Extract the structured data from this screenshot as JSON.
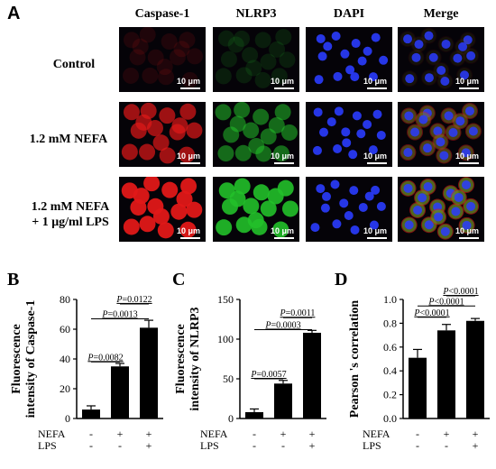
{
  "panel_a": {
    "letter": "A",
    "columns": [
      "Caspase-1",
      "NLRP3",
      "DAPI",
      "Merge"
    ],
    "rows": [
      {
        "line1": "Control",
        "line2": ""
      },
      {
        "line1": "1.2 mM NEFA",
        "line2": ""
      },
      {
        "line1": "1.2 mM NEFA",
        "line2": "+ 1 μg/ml LPS"
      }
    ],
    "scale_bar": "10 μm",
    "channel_colors": {
      "caspase": "#e01818",
      "nlrp3": "#22c02a",
      "dapi": "#2a3cff"
    }
  },
  "chart_data": [
    {
      "type": "bar",
      "letter": "B",
      "ylabel_line1": "Fluorescence",
      "ylabel_line2": "intensity of Caspase-1",
      "ylim": [
        0,
        80
      ],
      "yticks": [
        "0",
        "20",
        "40",
        "60",
        "80"
      ],
      "ytick_values": [
        0,
        20,
        40,
        60,
        80
      ],
      "values": [
        6,
        35,
        61
      ],
      "errors": [
        2.5,
        2,
        5
      ],
      "condition_labels": [
        "NEFA",
        "LPS"
      ],
      "conditions": [
        [
          "-",
          "+",
          "+"
        ],
        [
          "-",
          "-",
          "+"
        ]
      ],
      "pvals": [
        {
          "pair": [
            0,
            1
          ],
          "level": 38,
          "text": "P=0.0082"
        },
        {
          "pair": [
            0,
            2
          ],
          "level": 67,
          "text": "P=0.0013"
        },
        {
          "pair": [
            1,
            2
          ],
          "level": 77,
          "text": "P=0.0122"
        }
      ]
    },
    {
      "type": "bar",
      "letter": "C",
      "ylabel_line1": "Fluorescence",
      "ylabel_line2": "intensity of NLRP3",
      "ylim": [
        0,
        150
      ],
      "yticks": [
        "0",
        "50",
        "100",
        "150"
      ],
      "ytick_values": [
        0,
        50,
        100,
        150
      ],
      "values": [
        8,
        44,
        108
      ],
      "errors": [
        4,
        4,
        3
      ],
      "condition_labels": [
        "NEFA",
        "LPS"
      ],
      "conditions": [
        [
          "-",
          "+",
          "+"
        ],
        [
          "-",
          "-",
          "+"
        ]
      ],
      "pvals": [
        {
          "pair": [
            0,
            1
          ],
          "level": 50,
          "text": "P=0.0057"
        },
        {
          "pair": [
            0,
            2
          ],
          "level": 112,
          "text": "P=0.0003"
        },
        {
          "pair": [
            1,
            2
          ],
          "level": 127,
          "text": "P=0.0011"
        }
      ]
    },
    {
      "type": "bar",
      "letter": "D",
      "ylabel_line1": "Pearson  's correlation",
      "ylabel_line2": "",
      "ylim": [
        0,
        1.0
      ],
      "yticks": [
        "0.0",
        "0.2",
        "0.4",
        "0.6",
        "0.8",
        "1.0"
      ],
      "ytick_values": [
        0,
        0.2,
        0.4,
        0.6,
        0.8,
        1.0
      ],
      "values": [
        0.51,
        0.74,
        0.82
      ],
      "errors": [
        0.07,
        0.05,
        0.02
      ],
      "condition_labels": [
        "NEFA",
        "LPS"
      ],
      "conditions": [
        [
          "-",
          "+",
          "+"
        ],
        [
          "-",
          "-",
          "+"
        ]
      ],
      "pvals": [
        {
          "pair": [
            0,
            1
          ],
          "level": 0.85,
          "text": "P<0.0001"
        },
        {
          "pair": [
            0,
            2
          ],
          "level": 0.945,
          "text": "P<0.0001"
        },
        {
          "pair": [
            1,
            2
          ],
          "level": 1.03,
          "text": "P<0.0001"
        }
      ]
    }
  ]
}
